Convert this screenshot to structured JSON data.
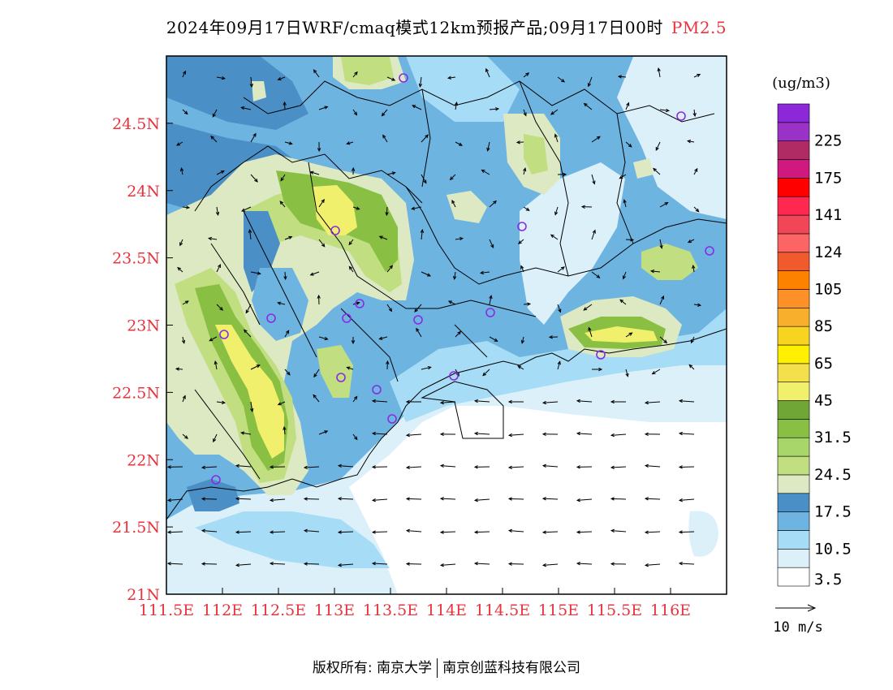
{
  "title": {
    "main": "2024年09月17日WRF/cmaq模式12km预报产品;09月17日00时",
    "pollutant": "PM2.5"
  },
  "axes": {
    "lon_ticks": [
      {
        "value": 111.5,
        "label": "111.5E"
      },
      {
        "value": 112,
        "label": "112E"
      },
      {
        "value": 112.5,
        "label": "112.5E"
      },
      {
        "value": 113,
        "label": "113E"
      },
      {
        "value": 113.5,
        "label": "113.5E"
      },
      {
        "value": 114,
        "label": "114E"
      },
      {
        "value": 114.5,
        "label": "114.5E"
      },
      {
        "value": 115,
        "label": "115E"
      },
      {
        "value": 115.5,
        "label": "115.5E"
      },
      {
        "value": 116,
        "label": "116E"
      }
    ],
    "lat_ticks": [
      {
        "value": 21,
        "label": "21N"
      },
      {
        "value": 21.5,
        "label": "21.5N"
      },
      {
        "value": 22,
        "label": "22N"
      },
      {
        "value": 22.5,
        "label": "22.5N"
      },
      {
        "value": 23,
        "label": "23N"
      },
      {
        "value": 23.5,
        "label": "23.5N"
      },
      {
        "value": 24,
        "label": "24N"
      },
      {
        "value": 24.5,
        "label": "24.5N"
      }
    ],
    "lon_range": [
      111.5,
      116.5
    ],
    "lat_range": [
      21.0,
      25.0
    ],
    "tick_label_color": "#e8343c"
  },
  "legend": {
    "unit": "(ug/m3)",
    "levels": [
      {
        "color": "#ffffff",
        "label": "3.5"
      },
      {
        "color": "#dcf0fa",
        "label": ""
      },
      {
        "color": "#a6dcf5",
        "label": "10.5"
      },
      {
        "color": "#6eb4e1",
        "label": ""
      },
      {
        "color": "#4a8fc6",
        "label": "17.5"
      },
      {
        "color": "#dde9c3",
        "label": ""
      },
      {
        "color": "#c1de80",
        "label": "24.5"
      },
      {
        "color": "#a9d66a",
        "label": ""
      },
      {
        "color": "#89c043",
        "label": "31.5"
      },
      {
        "color": "#6fa636",
        "label": ""
      },
      {
        "color": "#f0f06c",
        "label": "45"
      },
      {
        "color": "#f4e04a",
        "label": ""
      },
      {
        "color": "#fff000",
        "label": "65"
      },
      {
        "color": "#f7d420",
        "label": ""
      },
      {
        "color": "#f8b02c",
        "label": "85"
      },
      {
        "color": "#fd9128",
        "label": ""
      },
      {
        "color": "#fd8200",
        "label": "105"
      },
      {
        "color": "#f05a2c",
        "label": ""
      },
      {
        "color": "#fd6464",
        "label": "124"
      },
      {
        "color": "#f04658",
        "label": ""
      },
      {
        "color": "#ff2850",
        "label": "141"
      },
      {
        "color": "#ff0000",
        "label": ""
      },
      {
        "color": "#d01880",
        "label": "175"
      },
      {
        "color": "#b02a64",
        "label": ""
      },
      {
        "color": "#9a32c8",
        "label": "225"
      },
      {
        "color": "#8c28d8",
        "label": ""
      }
    ],
    "wind_ref": "10 m/s"
  },
  "footer": {
    "copyright": "版权所有: 南京大学",
    "company": "南京创蓝科技有限公司"
  },
  "colors": {
    "station_marker": "#8a2be2",
    "coastline": "#000000"
  }
}
